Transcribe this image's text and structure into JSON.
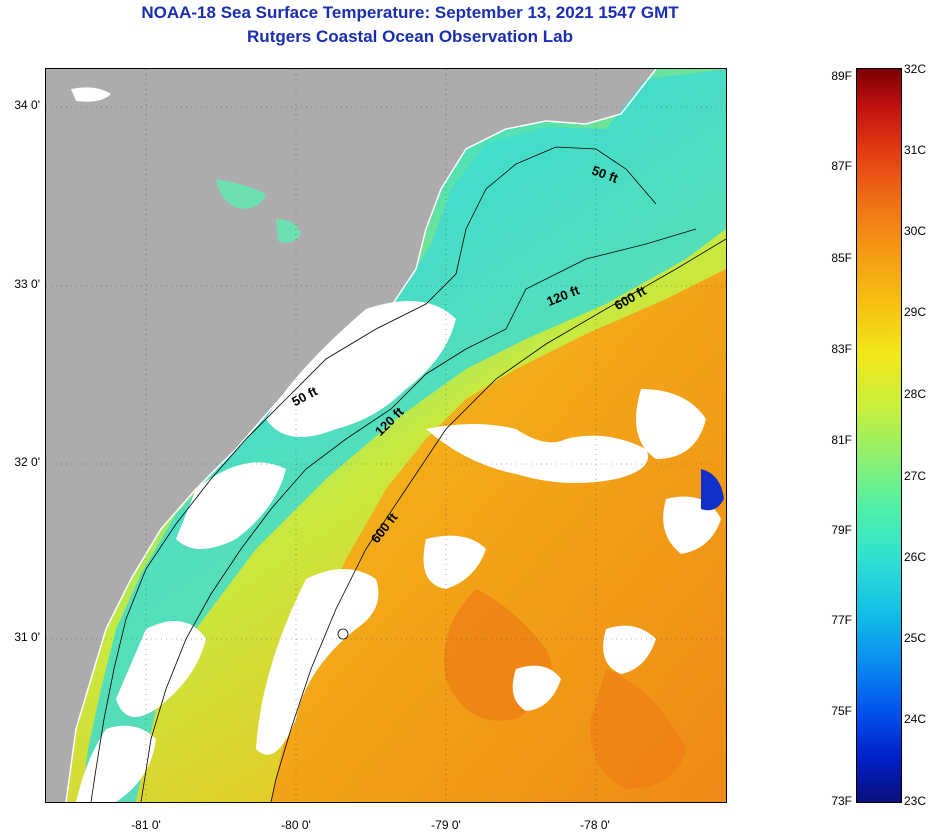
{
  "title_line1": "NOAA-18 Sea Surface Temperature:  September 13, 2021 1547 GMT",
  "title_line2": "Rutgers Coastal Ocean Observation Lab",
  "lat_labels": [
    "34 0'",
    "33 0'",
    "32 0'",
    "31 0'"
  ],
  "lon_labels": [
    "-81 0'",
    "-80 0'",
    "-79 0'",
    "-78 0'"
  ],
  "isobath_labels": [
    "50 ft",
    "120 ft",
    "600 ft",
    "50 ft",
    "120 ft",
    "600 ft"
  ],
  "colorbar": {
    "fahrenheit": [
      "89F",
      "87F",
      "85F",
      "83F",
      "81F",
      "79F",
      "77F",
      "75F",
      "73F"
    ],
    "celsius": [
      "32C",
      "31C",
      "30C",
      "29C",
      "28C",
      "27C",
      "26C",
      "25C",
      "24C",
      "23C"
    ]
  },
  "colors": {
    "land": "#acacac",
    "cloud": "#ffffff",
    "title": "#1a2fb0"
  }
}
